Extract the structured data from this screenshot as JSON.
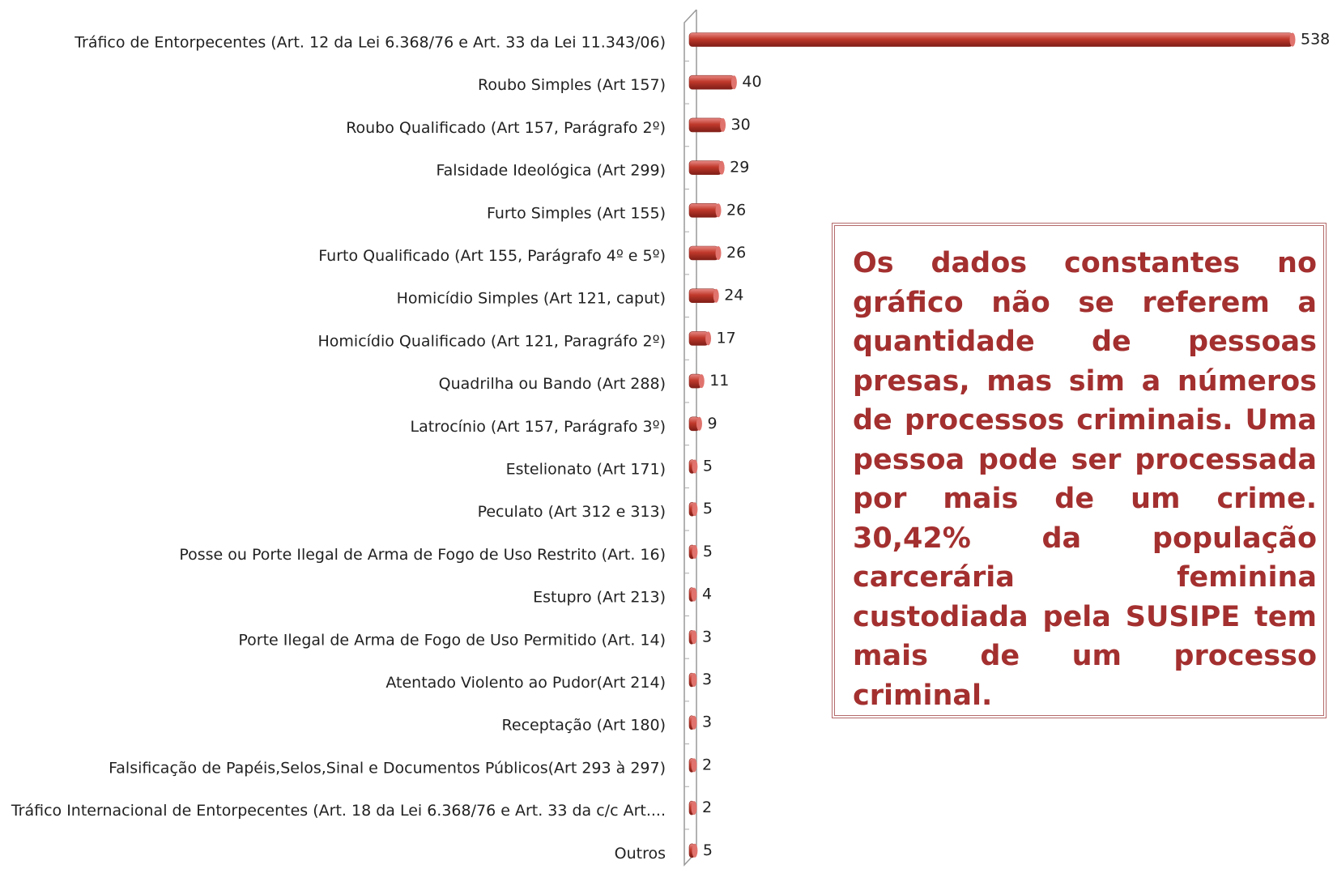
{
  "chart_data": {
    "type": "barh",
    "categories": [
      "Tráfico de Entorpecentes (Art. 12 da Lei 6.368/76 e Art. 33 da Lei 11.343/06)",
      "Roubo Simples (Art 157)",
      "Roubo Qualificado (Art 157, Parágrafo 2º)",
      "Falsidade Ideológica (Art 299)",
      "Furto Simples (Art 155)",
      "Furto Qualificado (Art 155, Parágrafo 4º e 5º)",
      "Homicídio Simples (Art 121, caput)",
      "Homicídio Qualificado (Art 121, Paragráfo 2º)",
      "Quadrilha ou Bando (Art 288)",
      "Latrocínio (Art 157, Parágrafo 3º)",
      "Estelionato (Art 171)",
      "Peculato (Art 312 e 313)",
      "Posse ou Porte Ilegal de Arma de Fogo de Uso Restrito (Art. 16)",
      "Estupro (Art 213)",
      "Porte Ilegal de Arma de Fogo de Uso Permitido (Art. 14)",
      "Atentado Violento ao Pudor(Art 214)",
      "Receptação (Art 180)",
      "Falsificação de Papéis,Selos,Sinal e Documentos Públicos(Art 293 à 297)",
      "Tráfico Internacional de Entorpecentes (Art. 18 da Lei 6.368/76 e Art. 33 da c/c Art....",
      "Outros"
    ],
    "values": [
      538,
      40,
      30,
      29,
      26,
      26,
      24,
      17,
      11,
      9,
      5,
      5,
      5,
      4,
      3,
      3,
      3,
      2,
      2,
      5
    ],
    "color": "#c0392b",
    "annotation": "Os dados constantes no gráfico não se referem a quantidade de pessoas presas, mas sim a números de processos criminais. Uma pessoa pode ser processada por mais de um crime. 30,42% da população carcerária feminina custodiada pela SUSIPE tem mais de um processo criminal."
  }
}
